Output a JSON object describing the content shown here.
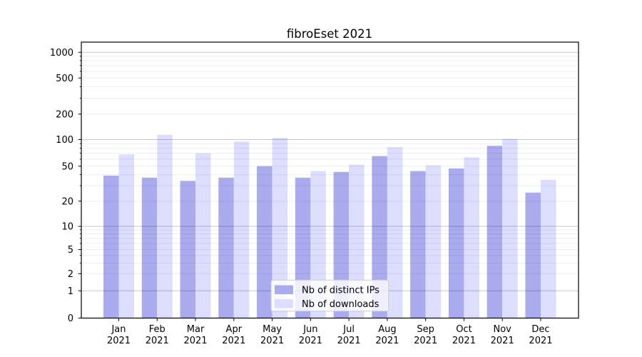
{
  "title": "fibroEset 2021",
  "chart_data": {
    "type": "bar",
    "title": "fibroEset 2021",
    "categories": [
      "Jan 2021",
      "Feb 2021",
      "Mar 2021",
      "Apr 2021",
      "May 2021",
      "Jun 2021",
      "Jul 2021",
      "Aug 2021",
      "Sep 2021",
      "Oct 2021",
      "Nov 2021",
      "Dec 2021"
    ],
    "series": [
      {
        "name": "Nb of distinct IPs",
        "color": "#aaaaee",
        "values": [
          39,
          37,
          34,
          37,
          50,
          37,
          43,
          65,
          44,
          47,
          85,
          25
        ]
      },
      {
        "name": "Nb of downloads",
        "color": "#ddddff",
        "values": [
          68,
          114,
          70,
          95,
          105,
          44,
          52,
          82,
          51,
          63,
          102,
          35
        ]
      }
    ],
    "xlabel": "",
    "ylabel": "",
    "yscale": "log-like with zero baseline",
    "ytick_values": [
      0,
      1,
      2,
      5,
      10,
      20,
      50,
      100,
      200,
      500,
      1000
    ],
    "ytick_labels": [
      "0",
      "1",
      "2",
      "5",
      "10",
      "20",
      "50",
      "100",
      "200",
      "500",
      "1000"
    ],
    "ylim": [
      0,
      1300
    ],
    "grid": "horizontal major (powers of 10) + minor (log subdivisions)",
    "legend": {
      "position": "lower center",
      "entries": [
        "Nb of distinct IPs",
        "Nb of downloads"
      ]
    }
  },
  "colors": {
    "bar_distinct_ips": "#aaaaee",
    "bar_downloads": "#ddddff",
    "axis_line": "#000000",
    "grid_major": "rgba(0,0,0,0.22)",
    "grid_minor": "rgba(0,0,0,0.07)",
    "legend_background": "rgba(255,255,255,0.8)",
    "legend_border": "#cccccc",
    "text": "#000000"
  }
}
